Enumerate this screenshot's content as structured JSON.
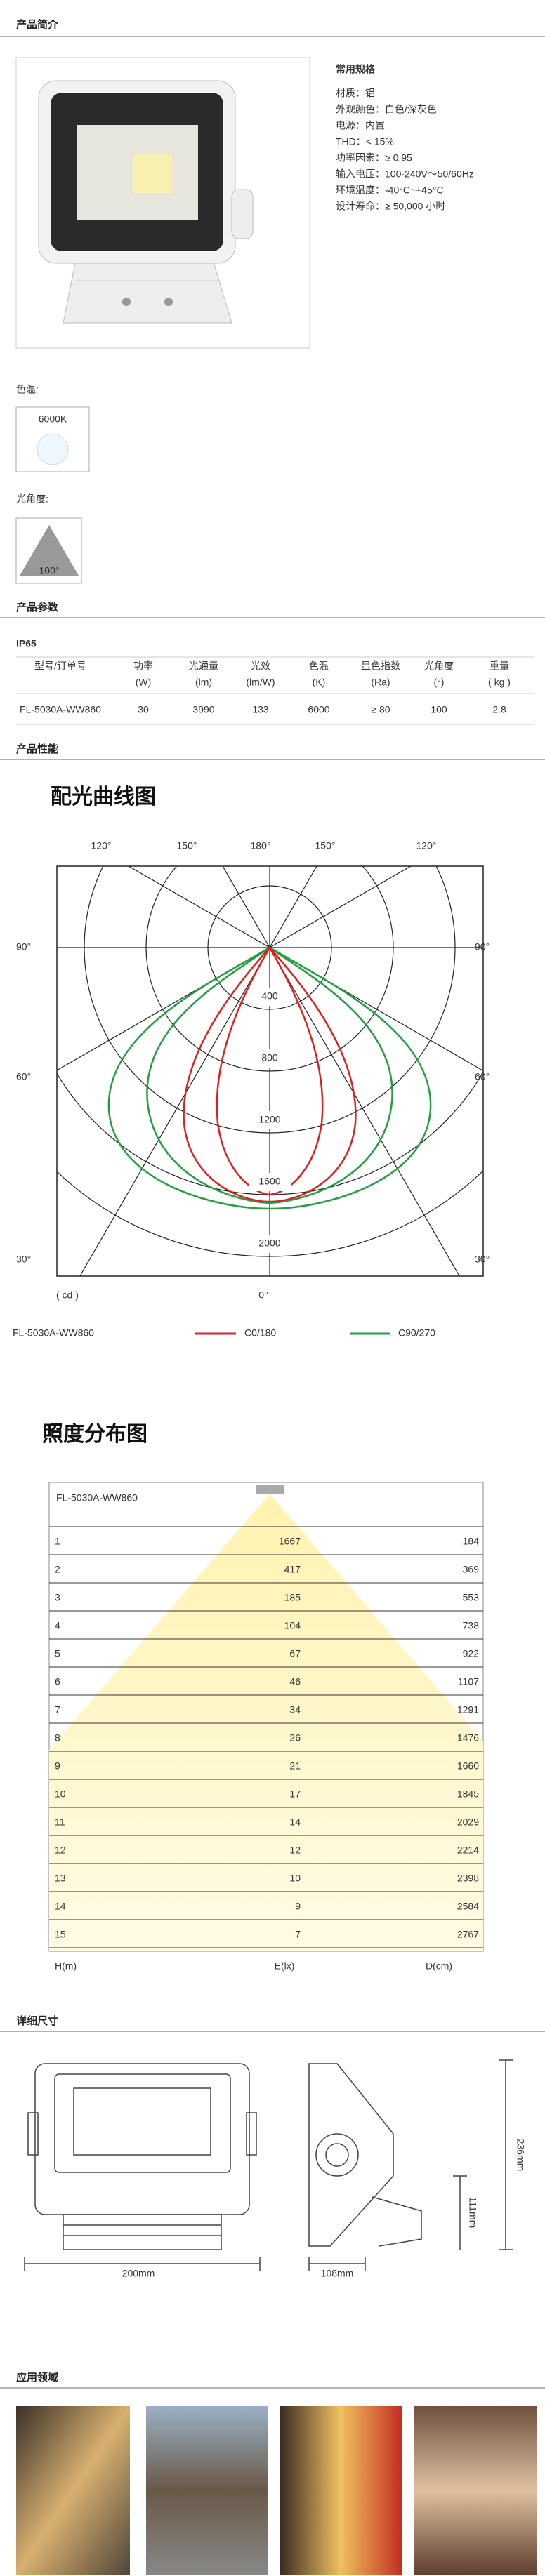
{
  "sections": {
    "intro": "产品简介",
    "params": "产品参数",
    "performance": "产品性能",
    "dimensions": "详细尺寸",
    "applications": "应用领域"
  },
  "specs": {
    "title": "常用规格",
    "items": [
      "材质：铝",
      "外观颜色：白色/深灰色",
      "电源：内置",
      "THD：< 15%",
      "功率因素：≥ 0.95",
      "输入电压：100-240V～50/60Hz",
      "环境温度：-40°C~+45°C",
      "设计寿命：≥ 50,000 小时"
    ]
  },
  "color_temp": {
    "label": "色温:",
    "value": "6000K"
  },
  "beam_angle": {
    "label": "光角度:",
    "value": "100°"
  },
  "ip": "IP65",
  "table": {
    "headers": [
      "型号/订单号",
      "功率",
      "光通量",
      "光效",
      "色温",
      "显色指数",
      "光角度",
      "重量"
    ],
    "units": [
      "(W)",
      "(lm)",
      "(lm/W)",
      "(K)",
      "(Ra)",
      "(°)",
      "( kg )"
    ],
    "rows": [
      [
        "FL-5030A-WW860",
        30,
        3990,
        133,
        6000,
        "≥ 80",
        100,
        2.8
      ]
    ]
  },
  "polar": {
    "title": "配光曲线图",
    "top_labels": [
      "120°",
      "150°",
      "180°",
      "150°",
      "120°"
    ],
    "left_labels": [
      "90°",
      "60°",
      "30°"
    ],
    "right_labels": [
      "90°",
      "60°",
      "30°"
    ],
    "bottom_label": "0°",
    "rings": [
      400,
      800,
      1200,
      1600,
      2000
    ],
    "unit": "( cd )",
    "model": "FL-5030A-WW860",
    "legend": [
      {
        "name": "C0/180",
        "color": "#e02020"
      },
      {
        "name": "C90/270",
        "color": "#22a040"
      }
    ]
  },
  "illuminance": {
    "title": "照度分布图",
    "model": "FL-5030A-WW860",
    "rows": [
      [
        1,
        1667,
        184
      ],
      [
        2,
        417,
        369
      ],
      [
        3,
        185,
        553
      ],
      [
        4,
        104,
        738
      ],
      [
        5,
        67,
        922
      ],
      [
        6,
        46,
        1107
      ],
      [
        7,
        34,
        1291
      ],
      [
        8,
        26,
        1476
      ],
      [
        9,
        21,
        1660
      ],
      [
        10,
        17,
        1845
      ],
      [
        11,
        14,
        2029
      ],
      [
        12,
        12,
        2214
      ],
      [
        13,
        10,
        2398
      ],
      [
        14,
        9,
        2584
      ],
      [
        15,
        7,
        2767
      ]
    ],
    "columns": [
      "H(m)",
      "E(lx)",
      "D(cm)"
    ]
  },
  "dimensions": {
    "width": "200mm",
    "depth": "108mm",
    "height": "236mm",
    "bracket": "111mm"
  }
}
